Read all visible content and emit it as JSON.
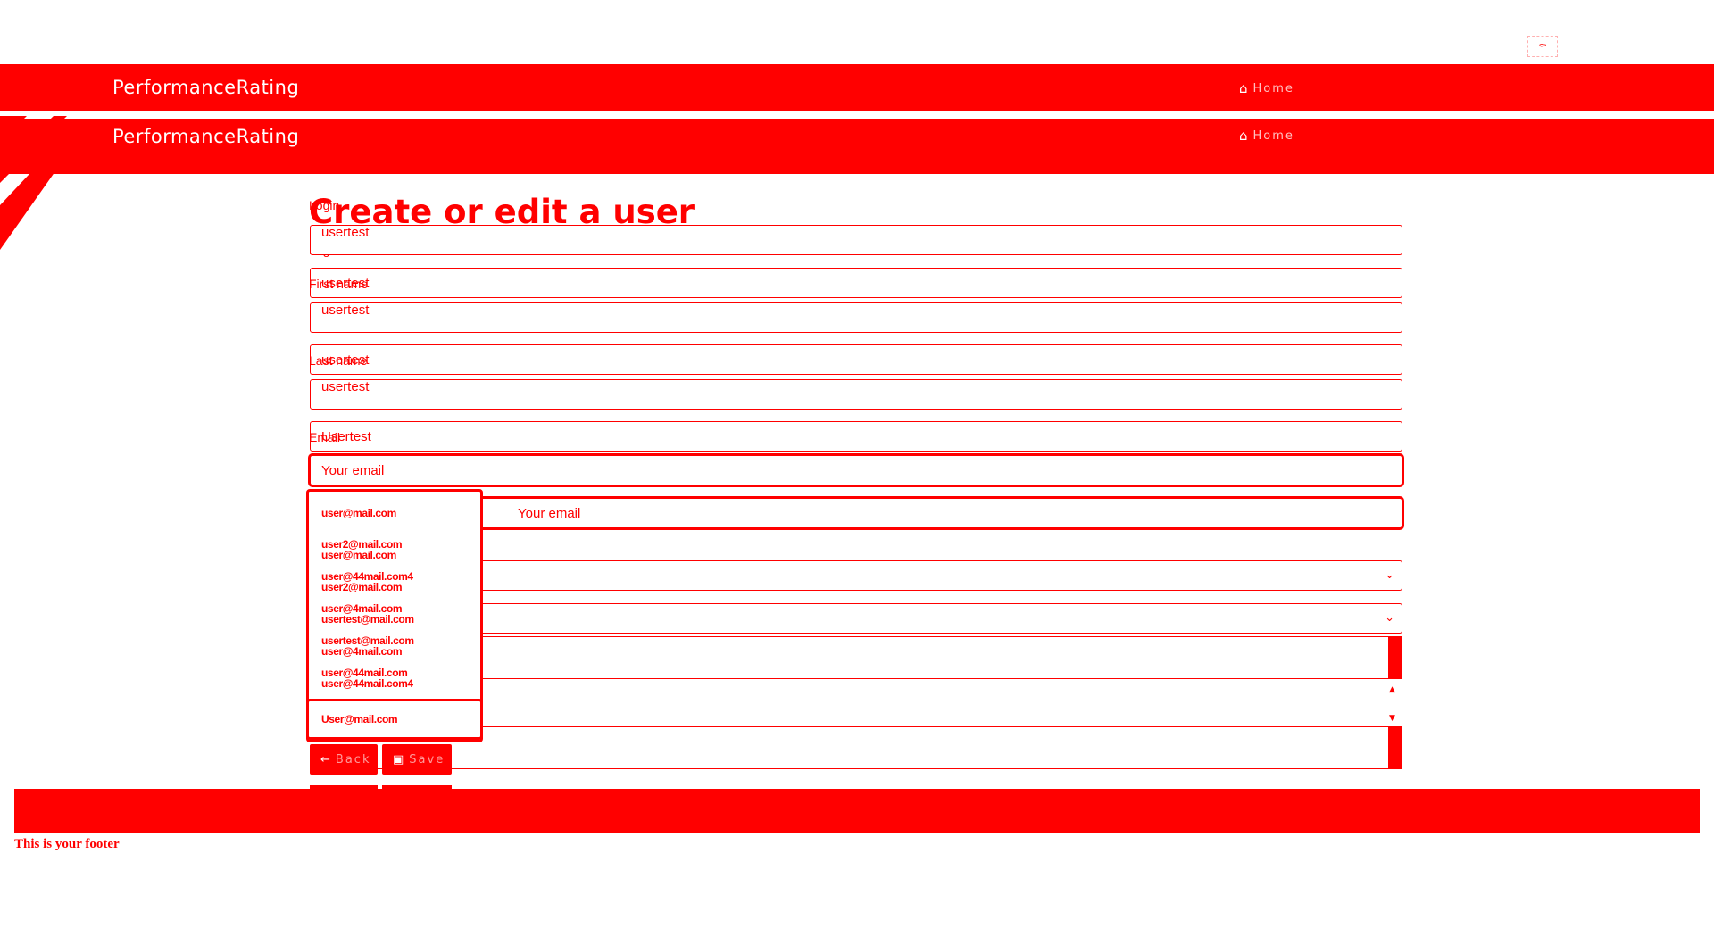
{
  "navbar": {
    "brand": "PerformanceRating",
    "home_label": "Home",
    "home_icon": "home-icon"
  },
  "page": {
    "title": "Create or edit a user"
  },
  "form": {
    "login": {
      "label": "Login",
      "value": "usertest"
    },
    "first_name": {
      "label": "First name",
      "value": "usertest"
    },
    "last_name": {
      "label": "Last name",
      "value": "usertest"
    },
    "email": {
      "label": "Email",
      "value": "Usertest",
      "placeholder": "Your email"
    }
  },
  "email_suggestions": {
    "items": [
      "user@mail.com",
      "user2@mail.com",
      "user@44mail.com4",
      "user@4mail.com",
      "usertest@mail.com",
      "user@44mail.com",
      "User@mail.com"
    ],
    "ghost_items": [
      "user@mail.com",
      "user2@mail.com",
      "usertest@mail.com",
      "user@4mail.com",
      "user@44mail.com4"
    ]
  },
  "buttons": {
    "back_label": "Back",
    "save_label": "Save"
  },
  "footer": {
    "text": "This is your footer"
  },
  "colors": {
    "accent": "#ff0000",
    "background": "#ffffff"
  }
}
